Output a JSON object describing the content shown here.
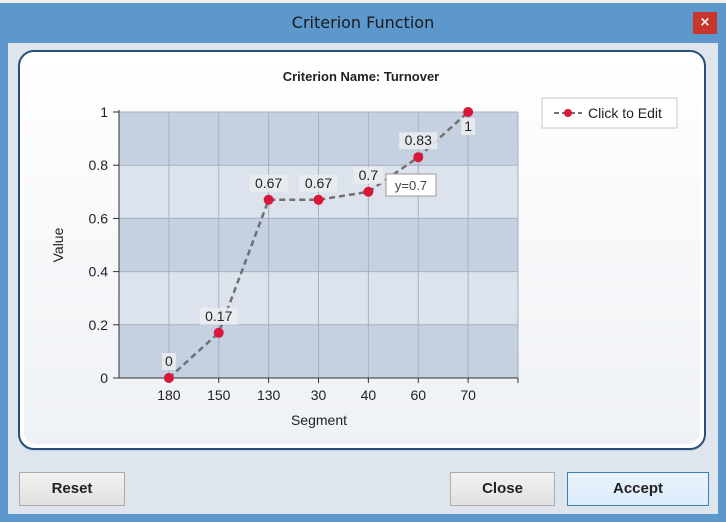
{
  "window": {
    "title": "Criterion Function",
    "close_glyph": "×"
  },
  "chart_data": {
    "type": "line",
    "title": "Criterion Name: Turnover",
    "xlabel": "Segment",
    "ylabel": "Value",
    "categories": [
      "180",
      "150",
      "130",
      "30",
      "40",
      "60",
      "70"
    ],
    "series": [
      {
        "name": "Click to Edit",
        "values": [
          0,
          0.17,
          0.67,
          0.67,
          0.7,
          0.83,
          1
        ]
      }
    ],
    "point_labels": [
      "0",
      "0.17",
      "0.67",
      "0.67",
      "0.7",
      "0.83",
      "1"
    ],
    "ylim": [
      0,
      1
    ],
    "yticks": [
      "0",
      "0.2",
      "0.4",
      "0.6",
      "0.8",
      "1"
    ],
    "grid": true,
    "legend_position": "top-right",
    "tooltip": "y=0.7",
    "line_color": "#707070",
    "marker_color": "#d9173b"
  },
  "buttons": {
    "reset": "Reset",
    "close": "Close",
    "accept": "Accept"
  }
}
